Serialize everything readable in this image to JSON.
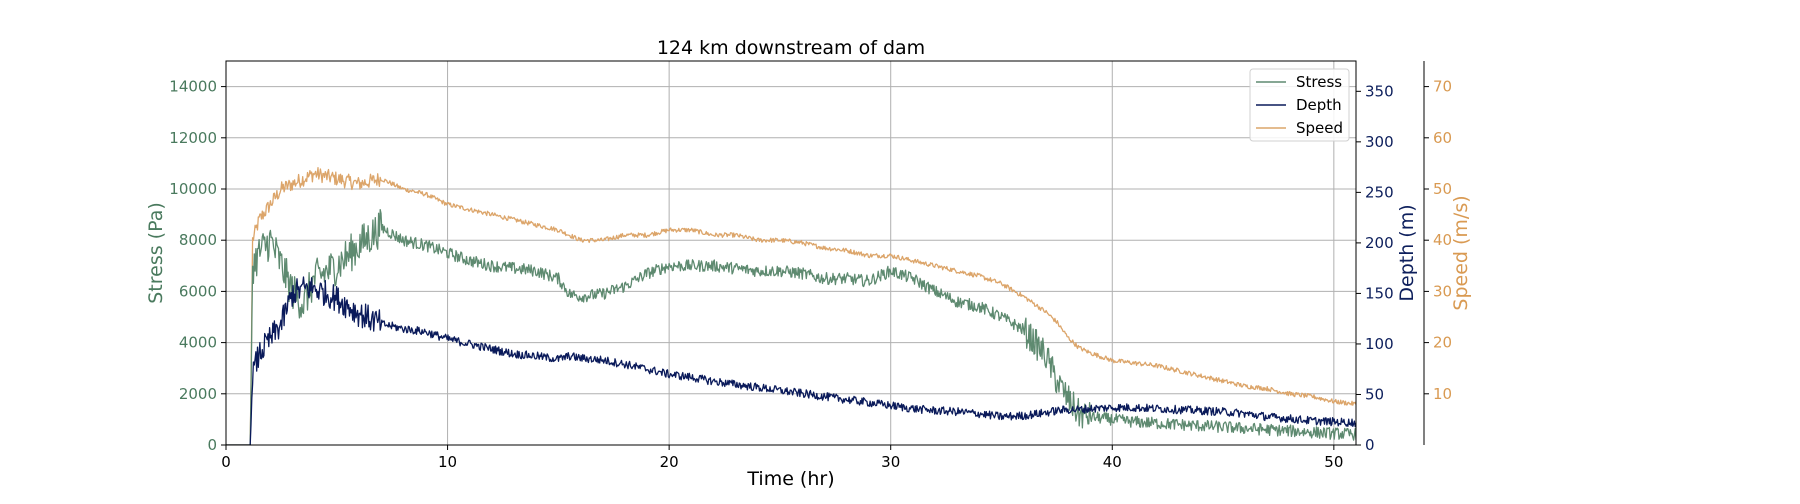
{
  "chart_data": {
    "type": "line",
    "title": "124 km downstream of dam",
    "xlabel": "Time (hr)",
    "xlim": [
      0,
      51
    ],
    "x_ticks": [
      "0",
      "10",
      "20",
      "30",
      "40",
      "50"
    ],
    "grid": true,
    "legend_position": "top-right",
    "axes": {
      "stress": {
        "label": "Stress (Pa)",
        "lim": [
          0,
          15000
        ],
        "ticks": [
          "0",
          "2000",
          "4000",
          "6000",
          "8000",
          "10000",
          "12000",
          "14000"
        ],
        "side": "left",
        "color": "#4a7a5e"
      },
      "depth": {
        "label": "Depth (m)",
        "lim": [
          0,
          380
        ],
        "ticks": [
          "0",
          "50",
          "100",
          "150",
          "200",
          "250",
          "300",
          "350"
        ],
        "side": "right",
        "color": "#0d1f5c"
      },
      "speed": {
        "label": "Speed (m/s)",
        "lim": [
          0,
          75
        ],
        "ticks": [
          "10",
          "20",
          "30",
          "40",
          "50",
          "60",
          "70"
        ],
        "side": "right-outer",
        "color": "#d99a52"
      }
    },
    "series": [
      {
        "name": "Speed",
        "axis": "speed",
        "color": "#dca56a",
        "noise": 0.5,
        "x": [
          0,
          1.1,
          1.2,
          1.5,
          2,
          2.5,
          3,
          3.5,
          4,
          5,
          6,
          7,
          8,
          9,
          10,
          11,
          12,
          13,
          14,
          15,
          15.5,
          16,
          17,
          18,
          19,
          20,
          21,
          22,
          23,
          24,
          25,
          26,
          27,
          28,
          29,
          30,
          31,
          32,
          33,
          34,
          35,
          36,
          37,
          37.5,
          38,
          38.5,
          39,
          40,
          41,
          42,
          43,
          44,
          45,
          46,
          47,
          48,
          49,
          50,
          51
        ],
        "y": [
          0,
          0,
          40,
          44,
          47,
          50,
          51,
          52,
          53,
          52,
          51,
          52,
          50,
          49,
          47,
          46,
          45,
          44,
          43,
          42,
          41,
          40,
          40,
          41,
          41,
          42,
          42,
          41,
          41,
          40,
          40,
          39.5,
          38.5,
          38,
          37,
          37,
          36,
          35,
          34,
          33,
          31.5,
          29,
          26,
          24,
          21,
          19,
          18,
          16.5,
          16,
          15.5,
          14.5,
          13.5,
          12.5,
          11.5,
          11,
          10,
          9.5,
          8.5,
          8
        ]
      },
      {
        "name": "Stress",
        "axis": "stress",
        "color": "#5e8a70",
        "noise": 1.3,
        "x": [
          0,
          1.1,
          1.2,
          1.5,
          2,
          2.5,
          3,
          3.5,
          4,
          5,
          6,
          7,
          8,
          9,
          10,
          11,
          12,
          13,
          14,
          15,
          15.5,
          16,
          17,
          18,
          19,
          20,
          21,
          22,
          23,
          24,
          25,
          26,
          27,
          28,
          29,
          30,
          31,
          32,
          33,
          34,
          35,
          36,
          37,
          37.5,
          38,
          38.5,
          39,
          40,
          41,
          42,
          43,
          44,
          45,
          46,
          47,
          48,
          49,
          50,
          51
        ],
        "y": [
          0,
          0,
          7000,
          7500,
          8000,
          7000,
          6000,
          5500,
          6500,
          7000,
          7800,
          8500,
          8000,
          7800,
          7500,
          7200,
          7000,
          6900,
          6800,
          6500,
          5900,
          5800,
          5900,
          6200,
          6700,
          7000,
          7000,
          7000,
          6900,
          6800,
          6800,
          6700,
          6500,
          6500,
          6400,
          6800,
          6500,
          6000,
          5600,
          5400,
          5000,
          4500,
          3500,
          2500,
          1800,
          1200,
          1100,
          1000,
          900,
          850,
          800,
          750,
          700,
          650,
          600,
          550,
          500,
          450,
          420
        ]
      },
      {
        "name": "Depth",
        "axis": "depth",
        "color": "#0a1a5a",
        "noise": 0.9,
        "x": [
          0,
          1.1,
          1.2,
          1.5,
          2,
          2.5,
          3,
          3.5,
          4,
          5,
          6,
          7,
          8,
          9,
          10,
          11,
          12,
          13,
          14,
          15,
          15.5,
          16,
          17,
          18,
          19,
          20,
          21,
          22,
          23,
          24,
          25,
          26,
          27,
          28,
          29,
          30,
          31,
          32,
          33,
          34,
          35,
          36,
          37,
          37.5,
          38,
          38.5,
          39,
          40,
          41,
          42,
          43,
          44,
          45,
          46,
          47,
          48,
          49,
          50,
          51
        ],
        "y": [
          0,
          0,
          70,
          90,
          105,
          120,
          150,
          155,
          155,
          145,
          130,
          120,
          115,
          112,
          105,
          100,
          95,
          90,
          88,
          85,
          88,
          86,
          84,
          80,
          75,
          70,
          67,
          63,
          60,
          57,
          54,
          51,
          48,
          45,
          42,
          39,
          36,
          34,
          33,
          31,
          28,
          29,
          32,
          34,
          35,
          35,
          36,
          37,
          37,
          36,
          35,
          34,
          33,
          31,
          28,
          26,
          24,
          23,
          22
        ]
      }
    ]
  }
}
